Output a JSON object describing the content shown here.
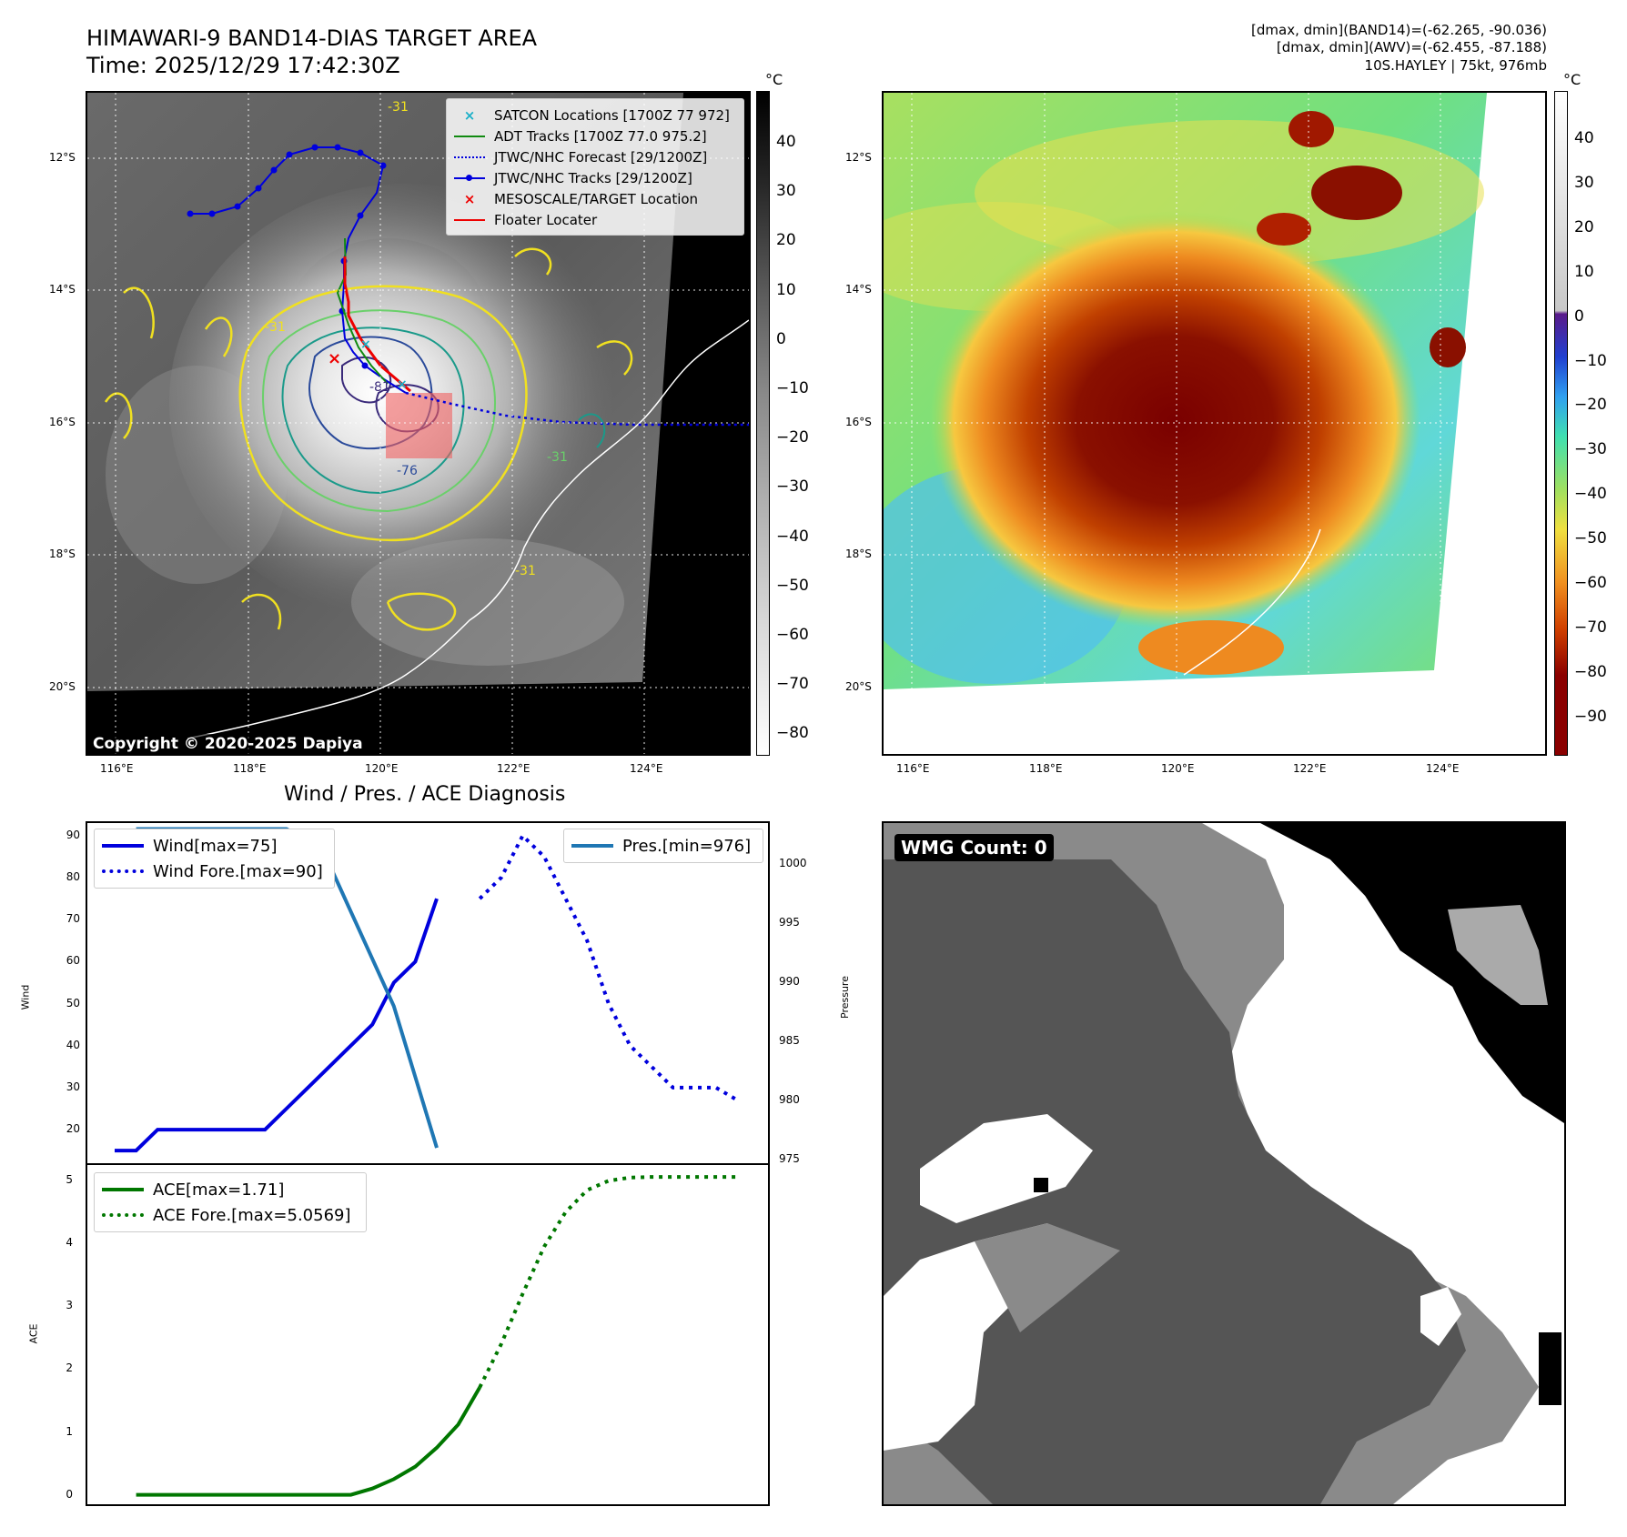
{
  "header": {
    "title_line1": "HIMAWARI-9 BAND14-DIAS TARGET AREA",
    "title_line2": "Time: 2025/12/29 17:42:30Z",
    "right_line1": "[dmax, dmin](BAND14)=(-62.265, -90.036)",
    "right_line2": "[dmax, dmin](AWV)=(-62.455, -87.188)",
    "right_line3": "10S.HAYLEY | 75kt, 976mb"
  },
  "map": {
    "lat_labels": [
      "12°S",
      "14°S",
      "16°S",
      "18°S",
      "20°S"
    ],
    "lon_labels": [
      "116°E",
      "118°E",
      "120°E",
      "122°E",
      "124°E"
    ],
    "copyright": "Copyright © 2020-2025 Dapiya",
    "contour_labels": [
      "-31",
      "-31",
      "-31",
      "-81",
      "-76",
      "-31"
    ],
    "legend": [
      {
        "label": "SATCON Locations [1700Z 77 972]",
        "color": "#1ab0c8"
      },
      {
        "label": "ADT Tracks [1700Z 77.0 975.2]",
        "color": "#118a11"
      },
      {
        "label": "JTWC/NHC Forecast [29/1200Z]",
        "color": "#0000dd"
      },
      {
        "label": "JTWC/NHC Tracks [29/1200Z]",
        "color": "#0000dd"
      },
      {
        "label": "MESOSCALE/TARGET Location",
        "color": "#ee0000"
      },
      {
        "label": "Floater Locater",
        "color": "#ee0000"
      }
    ],
    "colorbar_gray": {
      "unit": "°C",
      "ticks": [
        "40",
        "30",
        "20",
        "10",
        "0",
        "−10",
        "−20",
        "−30",
        "−40",
        "−50",
        "−60",
        "−70",
        "−80"
      ]
    },
    "colorbar_color": {
      "unit": "°C",
      "ticks": [
        "40",
        "30",
        "20",
        "10",
        "0",
        "−10",
        "−20",
        "−30",
        "−40",
        "−50",
        "−60",
        "−70",
        "−80",
        "−90"
      ]
    }
  },
  "diag": {
    "title": "Wind / Pres. / ACE Diagnosis",
    "wind_ylabel": "Wind",
    "pres_ylabel": "Pressure",
    "ace_ylabel": "ACE",
    "wind_legend": [
      {
        "label": "Wind[max=75]",
        "color": "#0000dd"
      },
      {
        "label": "Wind Fore.[max=90]",
        "color": "#0000dd"
      }
    ],
    "pres_legend": [
      {
        "label": "Pres.[min=976]",
        "color": "#1f77b4"
      }
    ],
    "ace_legend": [
      {
        "label": "ACE[max=1.71]",
        "color": "#007700"
      },
      {
        "label": "ACE Fore.[max=5.0569]",
        "color": "#007700"
      }
    ],
    "wmg_label": "WMG Count: 0"
  },
  "chart_data": [
    {
      "type": "line",
      "title": "Wind / Pres. / ACE Diagnosis",
      "ylabel": "Wind",
      "ylim": [
        12,
        93
      ],
      "xlim": [
        0,
        30
      ],
      "yticks": [
        20,
        30,
        40,
        50,
        60,
        70,
        80,
        90
      ],
      "series": [
        {
          "name": "Wind[max=75]",
          "style": "solid",
          "x": [
            0,
            1,
            2,
            3,
            4,
            5,
            6,
            7,
            8,
            9,
            10,
            11,
            12,
            13,
            14,
            15,
            16,
            17
          ],
          "values": [
            15,
            15,
            20,
            20,
            20,
            20,
            20,
            20,
            25,
            30,
            35,
            40,
            45,
            55,
            60,
            75,
            null,
            null
          ]
        },
        {
          "name": "Wind Fore.[max=90]",
          "style": "dotted",
          "x": [
            17,
            18,
            19,
            20,
            21,
            22,
            23,
            24,
            25,
            26,
            27,
            28,
            29
          ],
          "values": [
            75,
            80,
            90,
            85,
            75,
            65,
            50,
            40,
            35,
            30,
            30,
            30,
            27
          ]
        }
      ]
    },
    {
      "type": "line",
      "ylabel": "Pressure",
      "ylim": [
        974.7,
        1003.5
      ],
      "yticks": [
        975,
        980,
        985,
        990,
        995,
        1000
      ],
      "series": [
        {
          "name": "Pres.[min=976]",
          "x": [
            1,
            2,
            3,
            4,
            5,
            6,
            7,
            8,
            9,
            10,
            11,
            12,
            13,
            14,
            15,
            16
          ],
          "values": [
            1003,
            1003,
            1003,
            1003,
            1003,
            1003,
            1003,
            1003,
            1002,
            1000,
            996,
            992,
            988,
            982,
            976,
            null
          ]
        }
      ]
    },
    {
      "type": "line",
      "ylabel": "ACE",
      "ylim": [
        -0.15,
        5.25
      ],
      "yticks": [
        0,
        1,
        2,
        3,
        4,
        5
      ],
      "series": [
        {
          "name": "ACE[max=1.71]",
          "style": "solid",
          "x": [
            1,
            2,
            3,
            4,
            5,
            6,
            7,
            8,
            9,
            10,
            11,
            12,
            13,
            14,
            15,
            16,
            17
          ],
          "values": [
            0,
            0,
            0,
            0,
            0,
            0,
            0,
            0,
            0,
            0,
            0,
            0.1,
            0.25,
            0.45,
            0.75,
            1.12,
            1.71
          ]
        },
        {
          "name": "ACE Fore.[max=5.0569]",
          "style": "dotted",
          "x": [
            17,
            18,
            19,
            20,
            21,
            22,
            23,
            24,
            25,
            26,
            27,
            28,
            29
          ],
          "values": [
            1.71,
            2.4,
            3.2,
            3.95,
            4.5,
            4.85,
            5.0,
            5.05,
            5.06,
            5.06,
            5.06,
            5.06,
            5.06
          ]
        }
      ]
    }
  ]
}
